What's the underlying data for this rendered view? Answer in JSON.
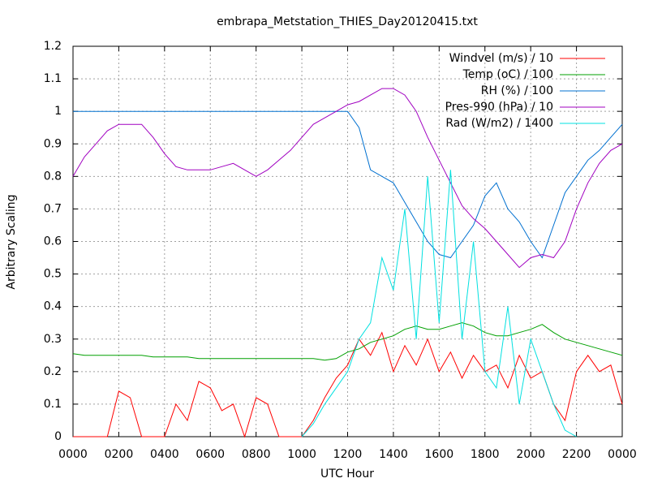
{
  "chart_data": {
    "type": "line",
    "title": "embrapa_Metstation_THIES_Day20120415.txt",
    "x_label": "UTC Hour",
    "y_label": "Arbitrary Scaling",
    "x": [
      0,
      0.5,
      1,
      1.5,
      2,
      2.5,
      3,
      3.5,
      4,
      4.5,
      5,
      5.5,
      6,
      6.5,
      7,
      7.5,
      8,
      8.5,
      9,
      9.5,
      10,
      10.5,
      11,
      11.5,
      12,
      12.5,
      13,
      13.5,
      14,
      14.5,
      15,
      15.5,
      16,
      16.5,
      17,
      17.5,
      18,
      18.5,
      19,
      19.5,
      20,
      20.5,
      21,
      21.5,
      22,
      22.5,
      23,
      23.5,
      24
    ],
    "series": [
      {
        "name": "Windvel (m/s) / 10",
        "color": "#ff0000",
        "values": [
          0,
          0,
          0,
          0,
          0.14,
          0.12,
          0,
          0,
          0,
          0.1,
          0.05,
          0.17,
          0.15,
          0.08,
          0.1,
          0,
          0.12,
          0.1,
          0,
          0,
          0,
          0.05,
          0.12,
          0.18,
          0.22,
          0.3,
          0.25,
          0.32,
          0.2,
          0.28,
          0.22,
          0.3,
          0.2,
          0.26,
          0.18,
          0.25,
          0.2,
          0.22,
          0.15,
          0.25,
          0.18,
          0.2,
          0.1,
          0.05,
          0.2,
          0.25,
          0.2,
          0.22,
          0.1
        ]
      },
      {
        "name": "Temp (oC) / 100",
        "color": "#00a000",
        "values": [
          0.255,
          0.25,
          0.25,
          0.25,
          0.25,
          0.25,
          0.25,
          0.245,
          0.245,
          0.245,
          0.245,
          0.24,
          0.24,
          0.24,
          0.24,
          0.24,
          0.24,
          0.24,
          0.24,
          0.24,
          0.24,
          0.24,
          0.235,
          0.24,
          0.26,
          0.27,
          0.29,
          0.3,
          0.31,
          0.33,
          0.34,
          0.33,
          0.33,
          0.34,
          0.35,
          0.34,
          0.32,
          0.31,
          0.31,
          0.32,
          0.33,
          0.345,
          0.32,
          0.3,
          0.29,
          0.28,
          0.27,
          0.26,
          0.25
        ]
      },
      {
        "name": "RH (%) / 100",
        "color": "#0070d0",
        "values": [
          1,
          1,
          1,
          1,
          1,
          1,
          1,
          1,
          1,
          1,
          1,
          1,
          1,
          1,
          1,
          1,
          1,
          1,
          1,
          1,
          1,
          1,
          1,
          1,
          1,
          0.95,
          0.82,
          0.8,
          0.78,
          0.72,
          0.66,
          0.6,
          0.56,
          0.55,
          0.6,
          0.65,
          0.74,
          0.78,
          0.7,
          0.66,
          0.6,
          0.55,
          0.65,
          0.75,
          0.8,
          0.85,
          0.88,
          0.92,
          0.96
        ]
      },
      {
        "name": "Pres-990 (hPa) / 10",
        "color": "#a000c0",
        "values": [
          0.8,
          0.86,
          0.9,
          0.94,
          0.96,
          0.96,
          0.96,
          0.92,
          0.87,
          0.83,
          0.82,
          0.82,
          0.82,
          0.83,
          0.84,
          0.82,
          0.8,
          0.82,
          0.85,
          0.88,
          0.92,
          0.96,
          0.98,
          1.0,
          1.02,
          1.03,
          1.05,
          1.07,
          1.07,
          1.05,
          1.0,
          0.92,
          0.85,
          0.78,
          0.71,
          0.67,
          0.64,
          0.6,
          0.56,
          0.52,
          0.55,
          0.56,
          0.55,
          0.6,
          0.7,
          0.78,
          0.84,
          0.88,
          0.9
        ]
      },
      {
        "name": "Rad (W/m2) / 1400",
        "color": "#00e0e0",
        "values": [
          null,
          null,
          null,
          null,
          null,
          null,
          null,
          null,
          null,
          null,
          null,
          null,
          null,
          null,
          null,
          null,
          null,
          null,
          null,
          null,
          0,
          0.04,
          0.1,
          0.15,
          0.2,
          0.3,
          0.35,
          0.55,
          0.45,
          0.7,
          0.3,
          0.8,
          0.35,
          0.82,
          0.3,
          0.6,
          0.2,
          0.15,
          0.4,
          0.1,
          0.3,
          0.2,
          0.1,
          0.02,
          0,
          null,
          null,
          null,
          null
        ]
      }
    ],
    "xlim": [
      0,
      24
    ],
    "xticks": [
      {
        "value": 0,
        "label": "0000"
      },
      {
        "value": 2,
        "label": "0200"
      },
      {
        "value": 4,
        "label": "0400"
      },
      {
        "value": 6,
        "label": "0600"
      },
      {
        "value": 8,
        "label": "0800"
      },
      {
        "value": 10,
        "label": "1000"
      },
      {
        "value": 12,
        "label": "1200"
      },
      {
        "value": 14,
        "label": "1400"
      },
      {
        "value": 16,
        "label": "1600"
      },
      {
        "value": 18,
        "label": "1800"
      },
      {
        "value": 20,
        "label": "2000"
      },
      {
        "value": 22,
        "label": "2200"
      },
      {
        "value": 24,
        "label": "0000"
      }
    ],
    "ylim": [
      0,
      1.2
    ],
    "yticks": [
      0,
      0.1,
      0.2,
      0.3,
      0.4,
      0.5,
      0.6,
      0.7,
      0.8,
      0.9,
      1,
      1.1,
      1.2
    ],
    "grid": true,
    "legend": "top-right"
  }
}
